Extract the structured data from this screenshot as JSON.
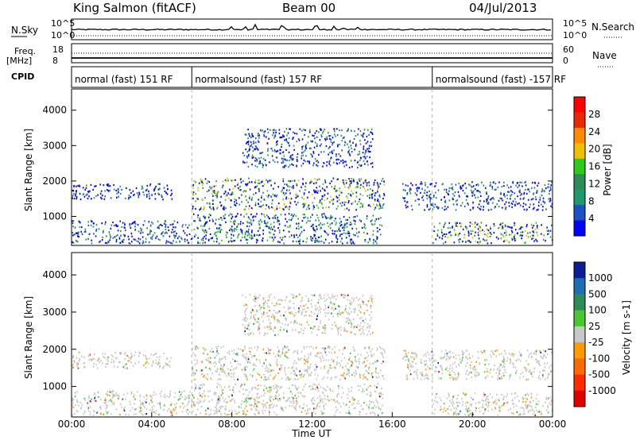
{
  "header": {
    "station": "King Salmon (fitACF)",
    "beam": "Beam 00",
    "date": "04/Jul/2013"
  },
  "noise_panel": {
    "left_label": "N.Sky",
    "right_label": "N.Search",
    "left_ticks": [
      "10^5",
      "10^0"
    ],
    "right_ticks": [
      "10^5",
      "10^0"
    ]
  },
  "freq_panel": {
    "left_label_1": "Freq.",
    "left_label_2": "[MHz]",
    "right_label": "Nave",
    "left_ticks": [
      "18",
      "8"
    ],
    "right_ticks": [
      "60",
      "0"
    ]
  },
  "cpid": {
    "label": "CPID",
    "segments": [
      {
        "label": "normal (fast) 151 RF",
        "start_hour": 0,
        "end_hour": 6
      },
      {
        "label": "normalsound (fast) 157 RF",
        "start_hour": 6,
        "end_hour": 18
      },
      {
        "label": "normalsound (fast) -157 RF",
        "start_hour": 18,
        "end_hour": 24
      }
    ]
  },
  "power_panel": {
    "ylabel": "Slant Range [km]",
    "cbar_label": "Power [dB]",
    "cbar_ticks": [
      "28",
      "24",
      "20",
      "16",
      "12",
      "8",
      "4"
    ],
    "cbar_colors": [
      "#ff0000",
      "#e82a00",
      "#ff8c00",
      "#f0c000",
      "#2fc81d",
      "#2e8b57",
      "#1e9a6e",
      "#1e50c8",
      "#0000ff"
    ]
  },
  "velocity_panel": {
    "ylabel": "Slant Range [km]",
    "cbar_label": "Velocity [m s-1]",
    "cbar_ticks": [
      "1000",
      "500",
      "100",
      "25",
      "-25",
      "-100",
      "-500",
      "-1000"
    ],
    "cbar_colors": [
      "#0a1e96",
      "#1e6eb4",
      "#2e8b57",
      "#4ac830",
      "#c8c8c8",
      "#ff9a00",
      "#ff6a00",
      "#ff2a00",
      "#e00000"
    ]
  },
  "x_axis": {
    "label": "Time UT",
    "ticks": [
      "00:00",
      "04:00",
      "08:00",
      "12:00",
      "16:00",
      "20:00",
      "00:00"
    ]
  },
  "chart_data": {
    "type": "heatmap",
    "title": "King Salmon (fitACF) Beam 00 04/Jul/2013",
    "xlabel": "Time UT",
    "ylabel": "Slant Range [km]",
    "xlim_hours": [
      0,
      24
    ],
    "ylim_km": [
      180,
      4600
    ],
    "y_ticks": [
      1000,
      2000,
      3000,
      4000
    ],
    "grid": false,
    "legend": "colorbar-right",
    "regions": [
      {
        "name": "lower-band-early",
        "t0": 0.0,
        "t1": 6.0,
        "r0": 250,
        "r1": 900,
        "power_db": 8
      },
      {
        "name": "band-1600-early",
        "t0": 0.0,
        "t1": 5.0,
        "r0": 1500,
        "r1": 1950,
        "power_db": 4
      },
      {
        "name": "main-band-1600",
        "t0": 6.0,
        "t1": 15.6,
        "r0": 1200,
        "r1": 2100,
        "power_db": 16
      },
      {
        "name": "band-2700",
        "t0": 8.5,
        "t1": 15.0,
        "r0": 2400,
        "r1": 3500,
        "power_db": 6
      },
      {
        "name": "lower-band-mid",
        "t0": 6.0,
        "t1": 15.5,
        "r0": 250,
        "r1": 1100,
        "power_db": 12
      },
      {
        "name": "late-band-1700",
        "t0": 16.5,
        "t1": 24.0,
        "r0": 1200,
        "r1": 2000,
        "power_db": 6
      },
      {
        "name": "lower-band-late",
        "t0": 18.0,
        "t1": 24.0,
        "r0": 250,
        "r1": 850,
        "power_db": 16
      }
    ]
  }
}
